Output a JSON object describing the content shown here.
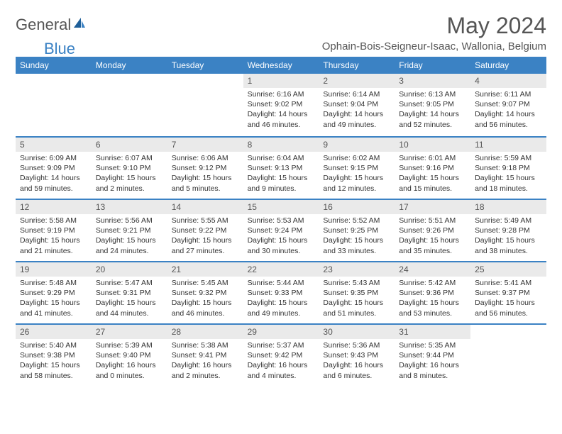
{
  "brand": {
    "general": "General",
    "blue": "Blue"
  },
  "title": "May 2024",
  "location": "Ophain-Bois-Seigneur-Isaac, Wallonia, Belgium",
  "weekday_labels": [
    "Sunday",
    "Monday",
    "Tuesday",
    "Wednesday",
    "Thursday",
    "Friday",
    "Saturday"
  ],
  "colors": {
    "accent": "#3b82c4",
    "header_text": "#ffffff",
    "day_bg": "#eaeaea",
    "text": "#333333",
    "muted": "#555555",
    "page_bg": "#ffffff"
  },
  "grid": {
    "cols": 7,
    "rows": 5
  },
  "days": [
    {
      "n": "",
      "empty": true,
      "sunrise": "",
      "sunset": "",
      "daylight": ""
    },
    {
      "n": "",
      "empty": true,
      "sunrise": "",
      "sunset": "",
      "daylight": ""
    },
    {
      "n": "",
      "empty": true,
      "sunrise": "",
      "sunset": "",
      "daylight": ""
    },
    {
      "n": "1",
      "sunrise": "Sunrise: 6:16 AM",
      "sunset": "Sunset: 9:02 PM",
      "daylight": "Daylight: 14 hours and 46 minutes."
    },
    {
      "n": "2",
      "sunrise": "Sunrise: 6:14 AM",
      "sunset": "Sunset: 9:04 PM",
      "daylight": "Daylight: 14 hours and 49 minutes."
    },
    {
      "n": "3",
      "sunrise": "Sunrise: 6:13 AM",
      "sunset": "Sunset: 9:05 PM",
      "daylight": "Daylight: 14 hours and 52 minutes."
    },
    {
      "n": "4",
      "sunrise": "Sunrise: 6:11 AM",
      "sunset": "Sunset: 9:07 PM",
      "daylight": "Daylight: 14 hours and 56 minutes."
    },
    {
      "n": "5",
      "sunrise": "Sunrise: 6:09 AM",
      "sunset": "Sunset: 9:09 PM",
      "daylight": "Daylight: 14 hours and 59 minutes."
    },
    {
      "n": "6",
      "sunrise": "Sunrise: 6:07 AM",
      "sunset": "Sunset: 9:10 PM",
      "daylight": "Daylight: 15 hours and 2 minutes."
    },
    {
      "n": "7",
      "sunrise": "Sunrise: 6:06 AM",
      "sunset": "Sunset: 9:12 PM",
      "daylight": "Daylight: 15 hours and 5 minutes."
    },
    {
      "n": "8",
      "sunrise": "Sunrise: 6:04 AM",
      "sunset": "Sunset: 9:13 PM",
      "daylight": "Daylight: 15 hours and 9 minutes."
    },
    {
      "n": "9",
      "sunrise": "Sunrise: 6:02 AM",
      "sunset": "Sunset: 9:15 PM",
      "daylight": "Daylight: 15 hours and 12 minutes."
    },
    {
      "n": "10",
      "sunrise": "Sunrise: 6:01 AM",
      "sunset": "Sunset: 9:16 PM",
      "daylight": "Daylight: 15 hours and 15 minutes."
    },
    {
      "n": "11",
      "sunrise": "Sunrise: 5:59 AM",
      "sunset": "Sunset: 9:18 PM",
      "daylight": "Daylight: 15 hours and 18 minutes."
    },
    {
      "n": "12",
      "sunrise": "Sunrise: 5:58 AM",
      "sunset": "Sunset: 9:19 PM",
      "daylight": "Daylight: 15 hours and 21 minutes."
    },
    {
      "n": "13",
      "sunrise": "Sunrise: 5:56 AM",
      "sunset": "Sunset: 9:21 PM",
      "daylight": "Daylight: 15 hours and 24 minutes."
    },
    {
      "n": "14",
      "sunrise": "Sunrise: 5:55 AM",
      "sunset": "Sunset: 9:22 PM",
      "daylight": "Daylight: 15 hours and 27 minutes."
    },
    {
      "n": "15",
      "sunrise": "Sunrise: 5:53 AM",
      "sunset": "Sunset: 9:24 PM",
      "daylight": "Daylight: 15 hours and 30 minutes."
    },
    {
      "n": "16",
      "sunrise": "Sunrise: 5:52 AM",
      "sunset": "Sunset: 9:25 PM",
      "daylight": "Daylight: 15 hours and 33 minutes."
    },
    {
      "n": "17",
      "sunrise": "Sunrise: 5:51 AM",
      "sunset": "Sunset: 9:26 PM",
      "daylight": "Daylight: 15 hours and 35 minutes."
    },
    {
      "n": "18",
      "sunrise": "Sunrise: 5:49 AM",
      "sunset": "Sunset: 9:28 PM",
      "daylight": "Daylight: 15 hours and 38 minutes."
    },
    {
      "n": "19",
      "sunrise": "Sunrise: 5:48 AM",
      "sunset": "Sunset: 9:29 PM",
      "daylight": "Daylight: 15 hours and 41 minutes."
    },
    {
      "n": "20",
      "sunrise": "Sunrise: 5:47 AM",
      "sunset": "Sunset: 9:31 PM",
      "daylight": "Daylight: 15 hours and 44 minutes."
    },
    {
      "n": "21",
      "sunrise": "Sunrise: 5:45 AM",
      "sunset": "Sunset: 9:32 PM",
      "daylight": "Daylight: 15 hours and 46 minutes."
    },
    {
      "n": "22",
      "sunrise": "Sunrise: 5:44 AM",
      "sunset": "Sunset: 9:33 PM",
      "daylight": "Daylight: 15 hours and 49 minutes."
    },
    {
      "n": "23",
      "sunrise": "Sunrise: 5:43 AM",
      "sunset": "Sunset: 9:35 PM",
      "daylight": "Daylight: 15 hours and 51 minutes."
    },
    {
      "n": "24",
      "sunrise": "Sunrise: 5:42 AM",
      "sunset": "Sunset: 9:36 PM",
      "daylight": "Daylight: 15 hours and 53 minutes."
    },
    {
      "n": "25",
      "sunrise": "Sunrise: 5:41 AM",
      "sunset": "Sunset: 9:37 PM",
      "daylight": "Daylight: 15 hours and 56 minutes."
    },
    {
      "n": "26",
      "sunrise": "Sunrise: 5:40 AM",
      "sunset": "Sunset: 9:38 PM",
      "daylight": "Daylight: 15 hours and 58 minutes."
    },
    {
      "n": "27",
      "sunrise": "Sunrise: 5:39 AM",
      "sunset": "Sunset: 9:40 PM",
      "daylight": "Daylight: 16 hours and 0 minutes."
    },
    {
      "n": "28",
      "sunrise": "Sunrise: 5:38 AM",
      "sunset": "Sunset: 9:41 PM",
      "daylight": "Daylight: 16 hours and 2 minutes."
    },
    {
      "n": "29",
      "sunrise": "Sunrise: 5:37 AM",
      "sunset": "Sunset: 9:42 PM",
      "daylight": "Daylight: 16 hours and 4 minutes."
    },
    {
      "n": "30",
      "sunrise": "Sunrise: 5:36 AM",
      "sunset": "Sunset: 9:43 PM",
      "daylight": "Daylight: 16 hours and 6 minutes."
    },
    {
      "n": "31",
      "sunrise": "Sunrise: 5:35 AM",
      "sunset": "Sunset: 9:44 PM",
      "daylight": "Daylight: 16 hours and 8 minutes."
    },
    {
      "n": "",
      "empty": true,
      "sunrise": "",
      "sunset": "",
      "daylight": ""
    }
  ]
}
